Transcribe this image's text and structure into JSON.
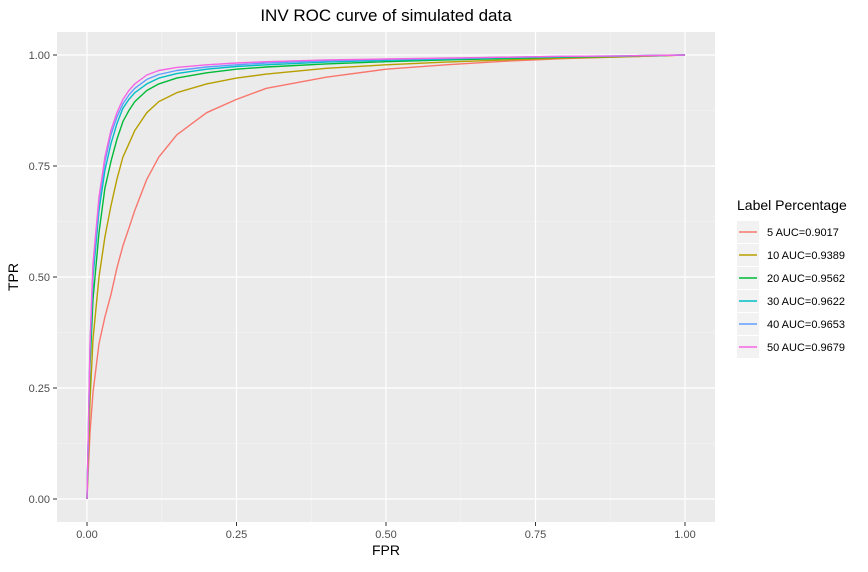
{
  "chart_data": {
    "type": "line",
    "title": "INV ROC curve of simulated data",
    "xlabel": "FPR",
    "ylabel": "TPR",
    "xlim": [
      0,
      1
    ],
    "ylim": [
      0,
      1
    ],
    "x_ticks": [
      "0.00",
      "0.25",
      "0.50",
      "0.75",
      "1.00"
    ],
    "y_ticks": [
      "0.00",
      "0.25",
      "0.50",
      "0.75",
      "1.00"
    ],
    "grid": true,
    "legend": {
      "title": "Label Percentage",
      "position": "right"
    },
    "series": [
      {
        "name": "5 AUC=0.9017",
        "color": "#F8766D",
        "x": [
          0,
          0.005,
          0.01,
          0.02,
          0.03,
          0.04,
          0.05,
          0.06,
          0.07,
          0.08,
          0.1,
          0.12,
          0.15,
          0.2,
          0.25,
          0.3,
          0.4,
          0.5,
          0.6,
          0.7,
          0.8,
          0.9,
          1.0
        ],
        "y": [
          0,
          0.15,
          0.24,
          0.35,
          0.41,
          0.46,
          0.52,
          0.57,
          0.61,
          0.65,
          0.72,
          0.77,
          0.82,
          0.87,
          0.9,
          0.925,
          0.95,
          0.968,
          0.978,
          0.986,
          0.992,
          0.996,
          1.0
        ]
      },
      {
        "name": "10 AUC=0.9389",
        "color": "#B79F00",
        "x": [
          0,
          0.005,
          0.01,
          0.02,
          0.03,
          0.04,
          0.05,
          0.06,
          0.07,
          0.08,
          0.1,
          0.12,
          0.15,
          0.2,
          0.25,
          0.3,
          0.4,
          0.5,
          0.6,
          0.7,
          0.8,
          0.9,
          1.0
        ],
        "y": [
          0,
          0.22,
          0.36,
          0.5,
          0.59,
          0.66,
          0.72,
          0.77,
          0.8,
          0.83,
          0.87,
          0.895,
          0.915,
          0.935,
          0.948,
          0.957,
          0.97,
          0.978,
          0.984,
          0.989,
          0.993,
          0.996,
          1.0
        ]
      },
      {
        "name": "20 AUC=0.9562",
        "color": "#00BA38",
        "x": [
          0,
          0.005,
          0.01,
          0.02,
          0.03,
          0.04,
          0.05,
          0.06,
          0.07,
          0.08,
          0.1,
          0.12,
          0.15,
          0.2,
          0.25,
          0.3,
          0.4,
          0.5,
          0.6,
          0.7,
          0.8,
          0.9,
          1.0
        ],
        "y": [
          0,
          0.3,
          0.45,
          0.6,
          0.7,
          0.76,
          0.81,
          0.85,
          0.875,
          0.895,
          0.92,
          0.935,
          0.948,
          0.96,
          0.968,
          0.973,
          0.98,
          0.985,
          0.989,
          0.992,
          0.995,
          0.997,
          1.0
        ]
      },
      {
        "name": "30 AUC=0.9622",
        "color": "#00BFC4",
        "x": [
          0,
          0.005,
          0.01,
          0.02,
          0.03,
          0.04,
          0.05,
          0.06,
          0.07,
          0.08,
          0.1,
          0.12,
          0.15,
          0.2,
          0.25,
          0.3,
          0.4,
          0.5,
          0.6,
          0.7,
          0.8,
          0.9,
          1.0
        ],
        "y": [
          0,
          0.33,
          0.5,
          0.65,
          0.74,
          0.8,
          0.845,
          0.88,
          0.9,
          0.915,
          0.935,
          0.948,
          0.958,
          0.968,
          0.974,
          0.978,
          0.984,
          0.988,
          0.991,
          0.994,
          0.996,
          0.998,
          1.0
        ]
      },
      {
        "name": "40 AUC=0.9653",
        "color": "#619CFF",
        "x": [
          0,
          0.005,
          0.01,
          0.02,
          0.03,
          0.04,
          0.05,
          0.06,
          0.07,
          0.08,
          0.1,
          0.12,
          0.15,
          0.2,
          0.25,
          0.3,
          0.4,
          0.5,
          0.6,
          0.7,
          0.8,
          0.9,
          1.0
        ],
        "y": [
          0,
          0.34,
          0.52,
          0.67,
          0.76,
          0.82,
          0.86,
          0.89,
          0.91,
          0.925,
          0.945,
          0.956,
          0.965,
          0.973,
          0.978,
          0.982,
          0.987,
          0.99,
          0.992,
          0.995,
          0.997,
          0.998,
          1.0
        ]
      },
      {
        "name": "50 AUC=0.9679",
        "color": "#F564E3",
        "x": [
          0,
          0.005,
          0.01,
          0.02,
          0.03,
          0.04,
          0.05,
          0.06,
          0.07,
          0.08,
          0.1,
          0.12,
          0.15,
          0.2,
          0.25,
          0.3,
          0.4,
          0.5,
          0.6,
          0.7,
          0.8,
          0.9,
          1.0
        ],
        "y": [
          0,
          0.35,
          0.53,
          0.68,
          0.77,
          0.83,
          0.87,
          0.9,
          0.92,
          0.935,
          0.955,
          0.965,
          0.972,
          0.978,
          0.982,
          0.985,
          0.989,
          0.991,
          0.993,
          0.995,
          0.997,
          0.998,
          1.0
        ]
      }
    ]
  }
}
